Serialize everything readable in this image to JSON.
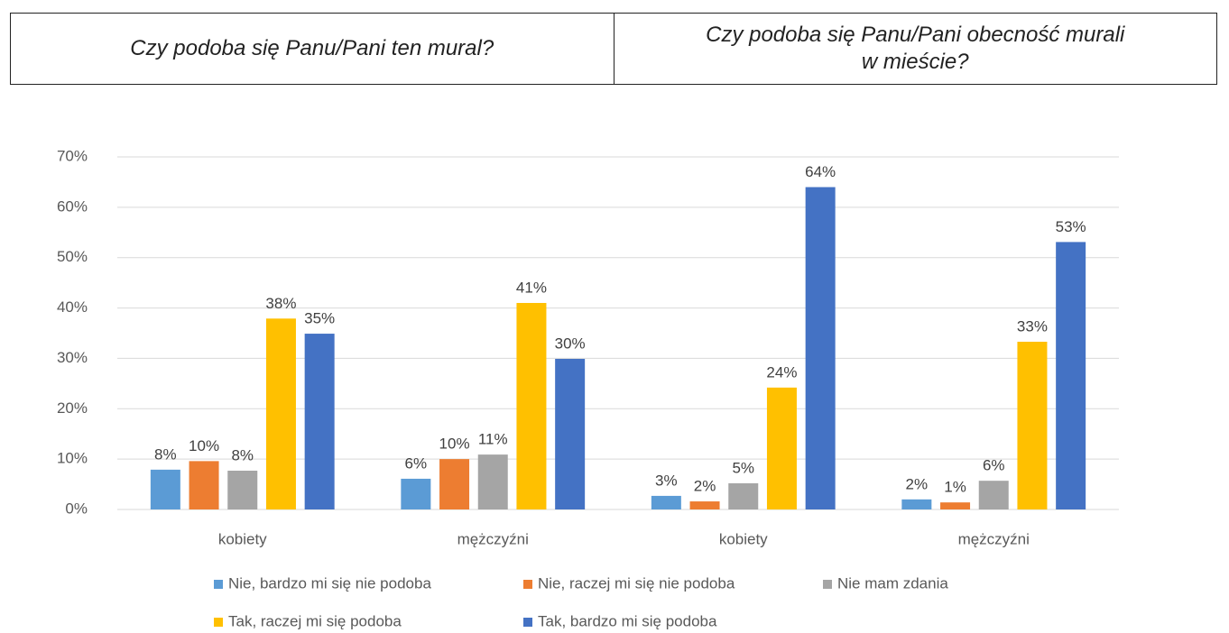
{
  "header": {
    "cells": [
      "Czy podoba się Panu/Pani ten mural?",
      "Czy podoba się Panu/Pani obecność murali w mieście?"
    ]
  },
  "chart_data": {
    "type": "bar",
    "categories": [
      "kobiety",
      "mężczyźni",
      "kobiety",
      "mężczyźni"
    ],
    "series": [
      {
        "name": "Nie, bardzo mi się nie podoba",
        "color": "#5b9bd5",
        "values": [
          7.9,
          6.1,
          2.7,
          2.0
        ],
        "value_labels": [
          "8%",
          "6%",
          "3%",
          "2%"
        ]
      },
      {
        "name": "Nie, raczej mi się nie podoba",
        "color": "#ed7d31",
        "values": [
          9.6,
          10.0,
          1.6,
          1.4
        ],
        "value_labels": [
          "10%",
          "10%",
          "2%",
          "1%"
        ]
      },
      {
        "name": "Nie mam zdania",
        "color": "#a5a5a5",
        "values": [
          7.7,
          10.9,
          5.2,
          5.7
        ],
        "value_labels": [
          "8%",
          "11%",
          "5%",
          "6%"
        ]
      },
      {
        "name": "Tak, raczej mi się podoba",
        "color": "#ffc000",
        "values": [
          37.9,
          41.0,
          24.2,
          33.3
        ],
        "value_labels": [
          "38%",
          "41%",
          "24%",
          "33%"
        ]
      },
      {
        "name": "Tak, bardzo mi się podoba",
        "color": "#4472c4",
        "values": [
          34.9,
          29.9,
          64.0,
          53.1
        ],
        "value_labels": [
          "35%",
          "30%",
          "64%",
          "53%"
        ]
      }
    ],
    "ylim": [
      0,
      70
    ],
    "yticks": [
      {
        "value": 0,
        "label": "0%"
      },
      {
        "value": 10,
        "label": "10%"
      },
      {
        "value": 20,
        "label": "20%"
      },
      {
        "value": 30,
        "label": "30%"
      },
      {
        "value": 40,
        "label": "40%"
      },
      {
        "value": 50,
        "label": "50%"
      },
      {
        "value": 60,
        "label": "60%"
      },
      {
        "value": 70,
        "label": "70%"
      }
    ],
    "grid": true,
    "legend": "bottom"
  }
}
